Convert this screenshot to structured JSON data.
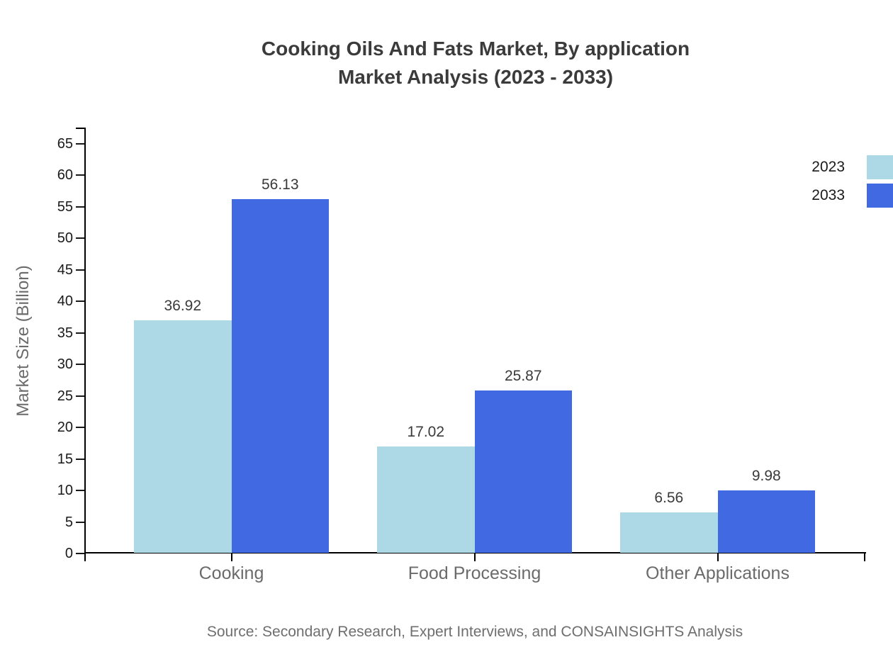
{
  "title": {
    "line1": "Cooking Oils And Fats Market, By application",
    "line2": "Market Analysis (2023 - 2033)"
  },
  "chart_data": {
    "type": "bar",
    "title": "Cooking Oils And Fats Market, By application Market Analysis (2023 - 2033)",
    "categories": [
      "Cooking",
      "Food Processing",
      "Other Applications"
    ],
    "series": [
      {
        "name": "2023",
        "color": "#ADD8E6",
        "values": [
          36.92,
          17.02,
          6.56
        ]
      },
      {
        "name": "2033",
        "color": "#4169E1",
        "values": [
          56.13,
          25.87,
          9.98
        ]
      }
    ],
    "xlabel": "",
    "ylabel": "Market Size (Billion)",
    "ylim": [
      0,
      65
    ],
    "ytick_step": 5,
    "grid": false,
    "legend_position": "top-right",
    "value_labels": true
  },
  "legend": [
    {
      "label": "2023",
      "color": "#ADD8E6"
    },
    {
      "label": "2033",
      "color": "#4169E1"
    }
  ],
  "source": "Source: Secondary Research, Expert Interviews, and CONSAINSIGHTS Analysis",
  "colors": {
    "series_2023": "#ADD8E6",
    "series_2033": "#4169E1",
    "axis": "#000000",
    "title_text": "#3B3B3B",
    "tick_label": "#1A1A1A",
    "category_label": "#6B6B6B",
    "value_label": "#3A3A3A",
    "source_text": "#6E6E6E",
    "background": "#FFFFFF"
  }
}
